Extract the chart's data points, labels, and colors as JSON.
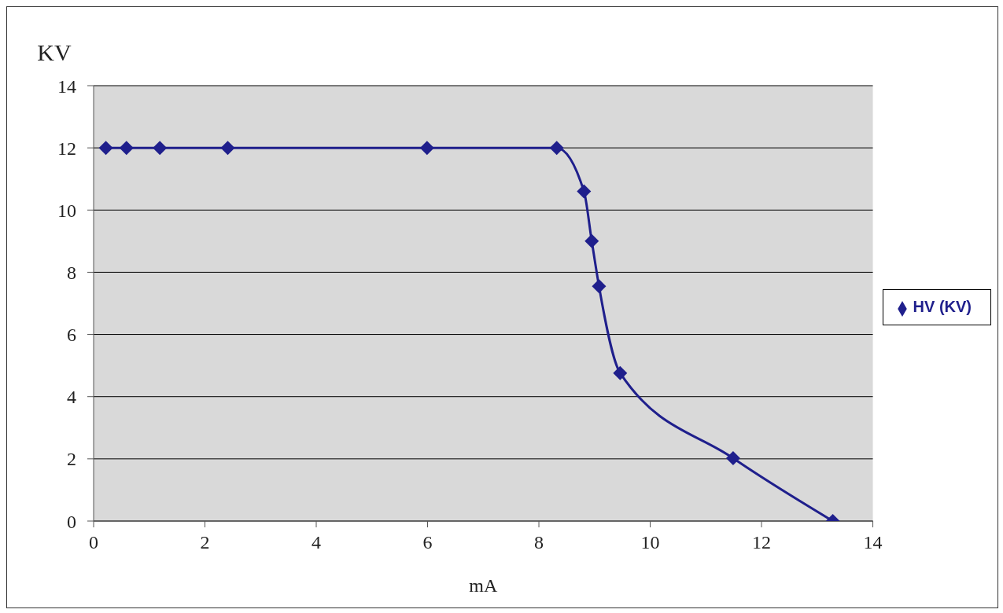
{
  "chart_data": {
    "type": "line",
    "xlabel": "mA",
    "ylabel": "KV",
    "series": [
      {
        "name": "HV (KV)",
        "color": "#1f1f8c",
        "x": [
          0.22,
          0.59,
          1.19,
          2.41,
          5.99,
          8.32,
          8.81,
          8.95,
          9.08,
          9.46,
          11.49,
          13.28
        ],
        "values": [
          12,
          12,
          12,
          12,
          12,
          12,
          10.6,
          9.0,
          7.55,
          4.76,
          2.02,
          0
        ]
      }
    ],
    "xlim": [
      0,
      14
    ],
    "xticks": [
      0,
      2,
      4,
      6,
      8,
      10,
      12,
      14
    ],
    "ylim": [
      0,
      14
    ],
    "yticks": [
      0,
      2,
      4,
      6,
      8,
      10,
      12,
      14
    ],
    "grid": "y",
    "legend": "right",
    "marker": "diamond",
    "line_style": "solid"
  }
}
